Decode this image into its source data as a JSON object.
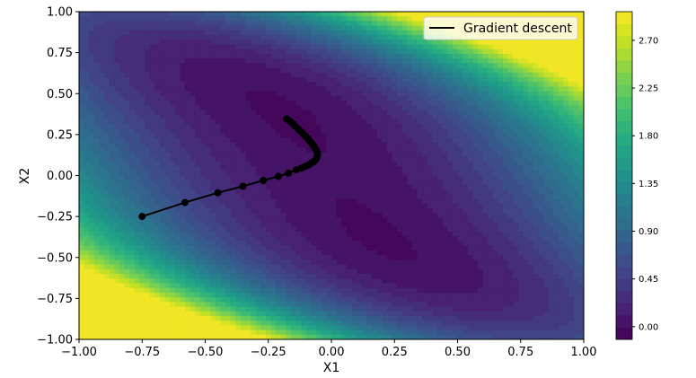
{
  "chart_data": {
    "type": "contour",
    "title": "",
    "xlabel": "X1",
    "ylabel": "X2",
    "xlim": [
      -1.0,
      1.0
    ],
    "ylim": [
      -1.0,
      1.0
    ],
    "xticks": [
      "−1.00",
      "−0.75",
      "−0.50",
      "−0.25",
      "0.00",
      "0.25",
      "0.50",
      "0.75",
      "1.00"
    ],
    "yticks": [
      "−1.00",
      "−0.75",
      "−0.50",
      "−0.25",
      "0.00",
      "0.25",
      "0.50",
      "0.75",
      "1.00"
    ],
    "legend": {
      "position": "top-right",
      "entries": [
        "Gradient descent"
      ]
    },
    "colorbar": {
      "min": -0.12,
      "max": 2.97,
      "ticks": [
        "0.00",
        "0.45",
        "0.90",
        "1.35",
        "1.80",
        "2.25",
        "2.70"
      ],
      "tick_values": [
        0.0,
        0.45,
        0.9,
        1.35,
        1.8,
        2.25,
        2.7
      ],
      "levels": 27,
      "colormap": "viridis"
    },
    "series": [
      {
        "name": "Gradient descent",
        "color": "#000000",
        "x": [
          -0.75,
          -0.58,
          -0.45,
          -0.35,
          -0.27,
          -0.21,
          -0.17,
          -0.14,
          -0.12,
          -0.105,
          -0.09,
          -0.08,
          -0.07,
          -0.062,
          -0.058,
          -0.055,
          -0.056,
          -0.06,
          -0.065,
          -0.07,
          -0.077,
          -0.085,
          -0.093,
          -0.102,
          -0.112,
          -0.122,
          -0.132,
          -0.142,
          -0.152,
          -0.162,
          -0.171,
          -0.178
        ],
        "y": [
          -0.25,
          -0.165,
          -0.105,
          -0.065,
          -0.03,
          -0.005,
          0.015,
          0.035,
          0.045,
          0.055,
          0.065,
          0.075,
          0.085,
          0.097,
          0.11,
          0.125,
          0.14,
          0.155,
          0.168,
          0.18,
          0.195,
          0.21,
          0.225,
          0.24,
          0.255,
          0.27,
          0.285,
          0.3,
          0.315,
          0.328,
          0.338,
          0.345
        ]
      }
    ]
  }
}
